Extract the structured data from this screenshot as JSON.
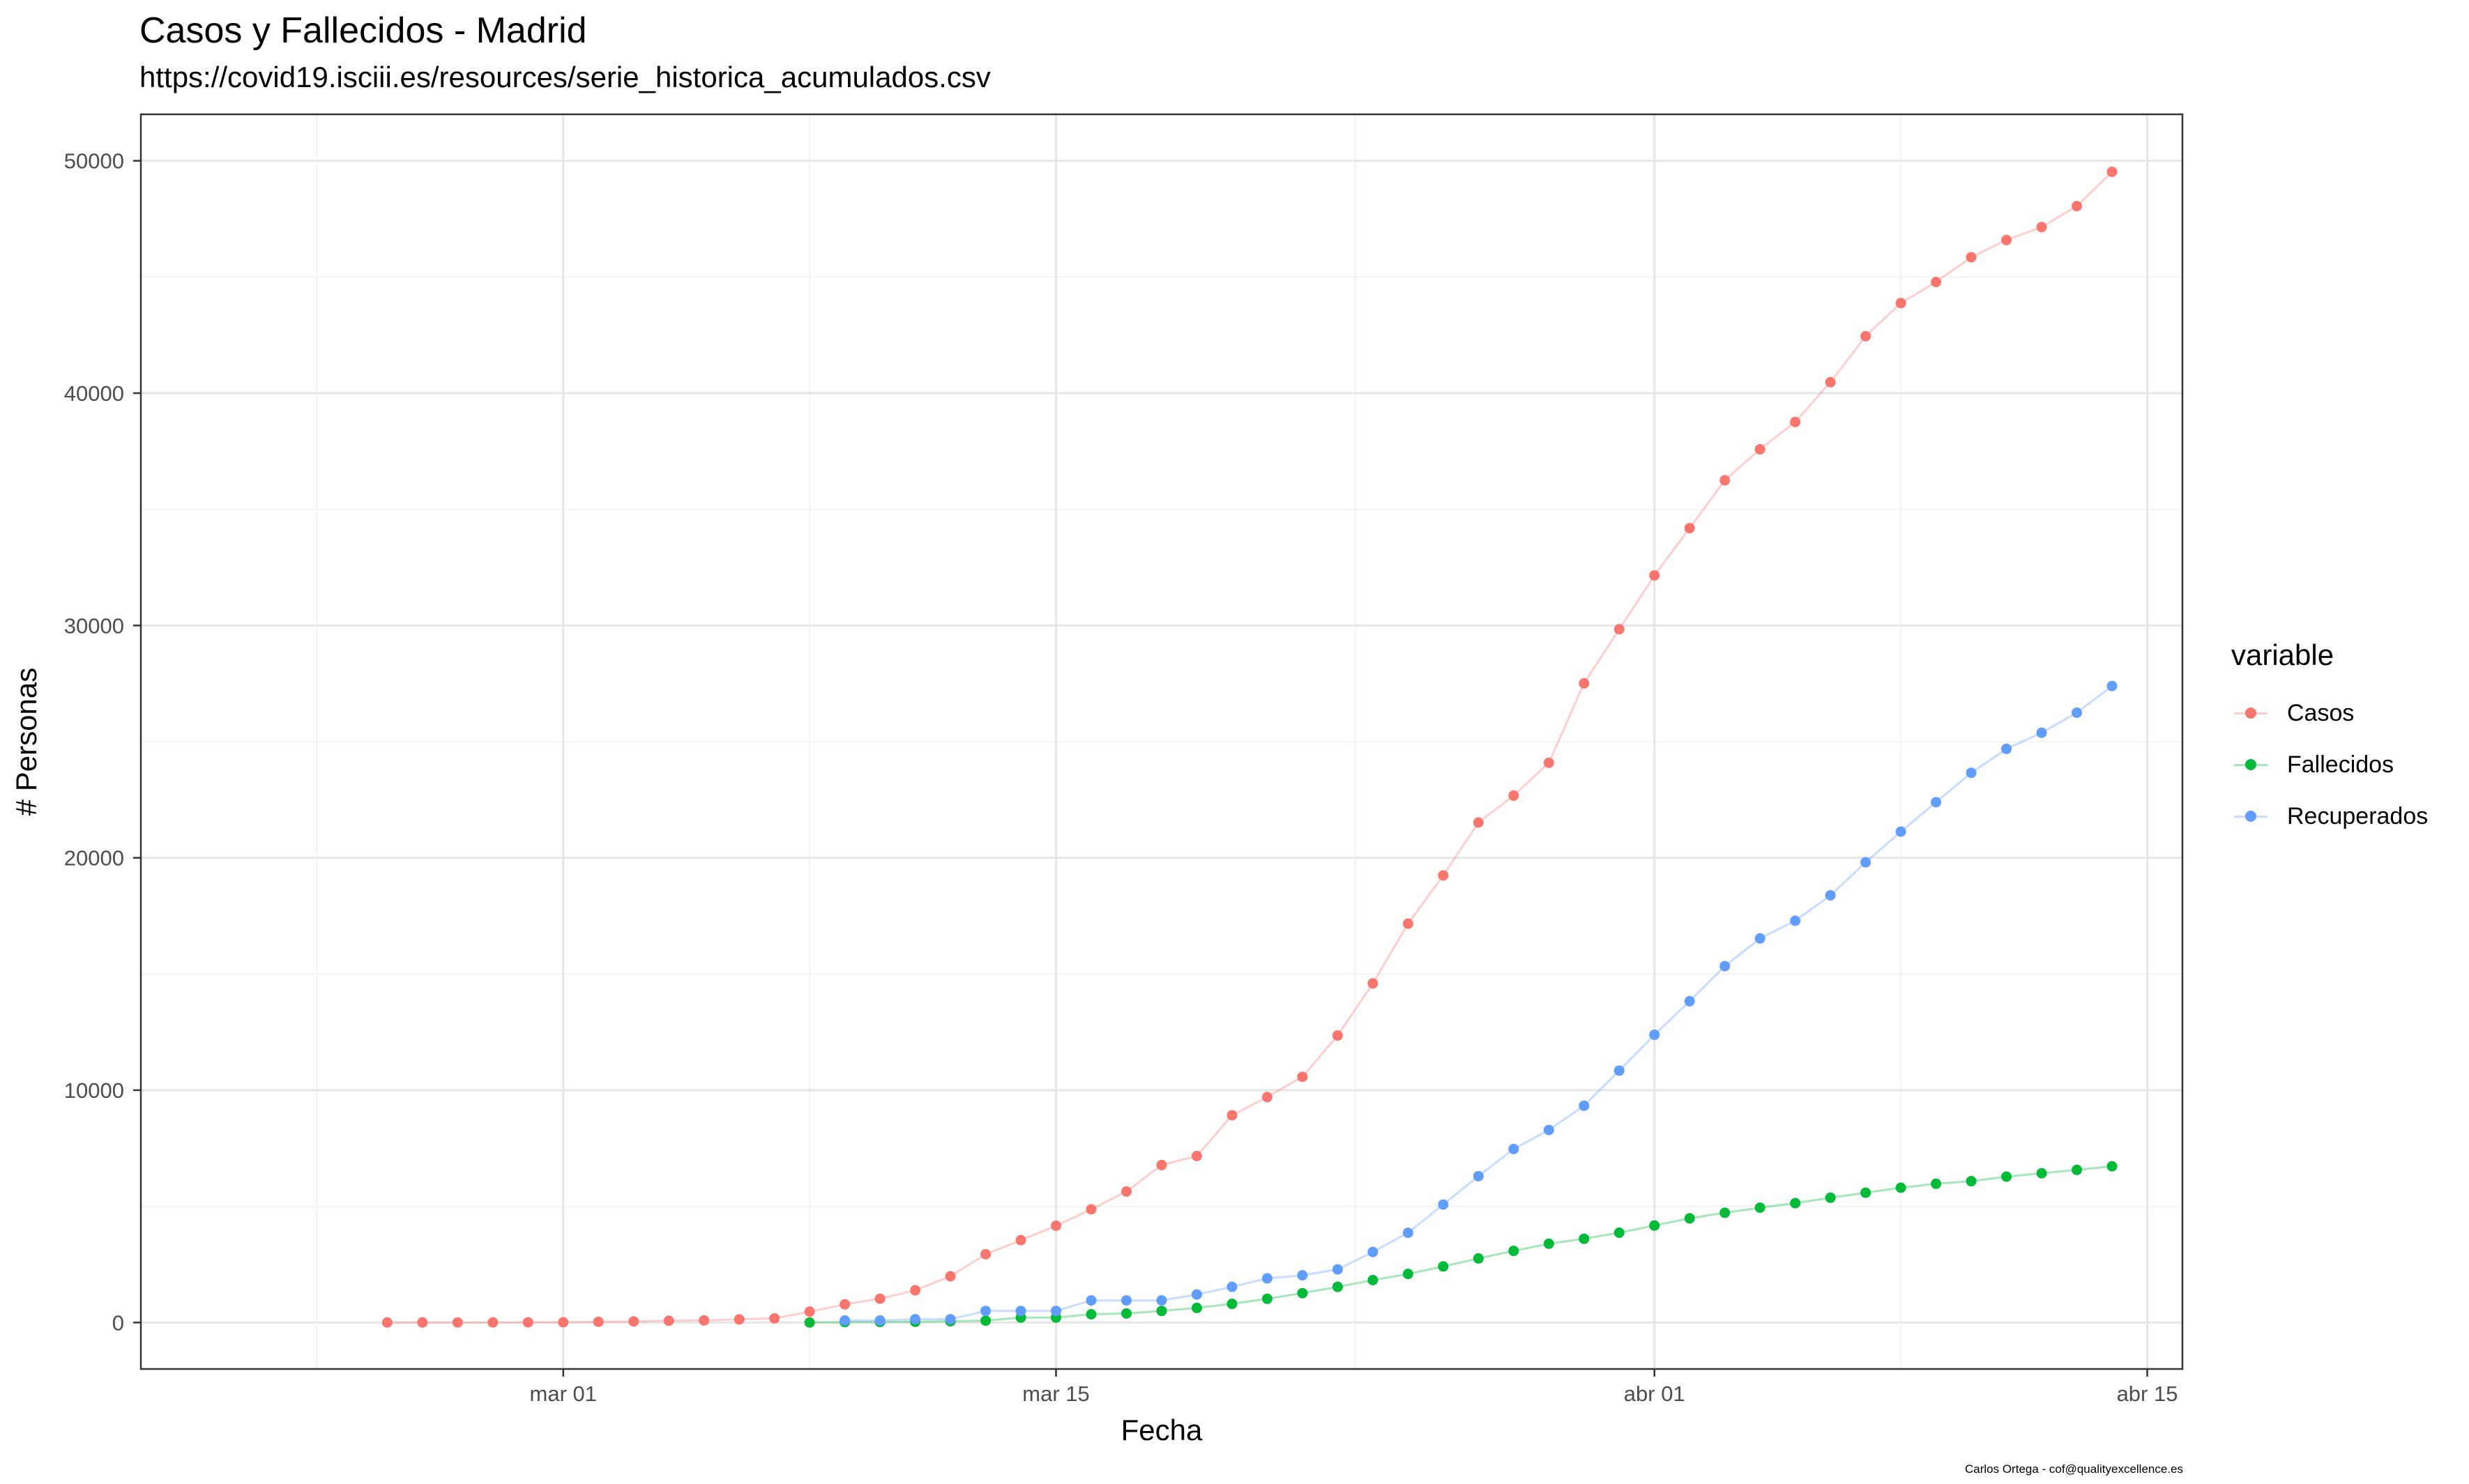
{
  "chart_data": {
    "type": "line",
    "title": "Casos y Fallecidos - Madrid",
    "subtitle": "https://covid19.isciii.es/resources/serie_historica_acumulados.csv",
    "xlabel": "Fecha",
    "ylabel": "# Personas",
    "caption": "Carlos Ortega - cof@qualityexcellence.es",
    "x_type": "date",
    "xlim": [
      "2020-02-18",
      "2020-04-16"
    ],
    "ylim": [
      -2000,
      52000
    ],
    "x_ticks": [
      {
        "date": "2020-03-01",
        "label": "mar 01"
      },
      {
        "date": "2020-03-15",
        "label": "mar 15"
      },
      {
        "date": "2020-04-01",
        "label": "abr 01"
      },
      {
        "date": "2020-04-15",
        "label": "abr 15"
      }
    ],
    "y_ticks": [
      0,
      10000,
      20000,
      30000,
      40000,
      50000
    ],
    "grid": true,
    "legend": {
      "title": "variable",
      "position": "right"
    },
    "series": [
      {
        "name": "Casos",
        "color": "#F8766D",
        "points": [
          [
            "2020-02-25",
            1
          ],
          [
            "2020-02-26",
            2
          ],
          [
            "2020-02-27",
            3
          ],
          [
            "2020-02-28",
            5
          ],
          [
            "2020-02-29",
            8
          ],
          [
            "2020-03-01",
            10
          ],
          [
            "2020-03-02",
            29
          ],
          [
            "2020-03-03",
            49
          ],
          [
            "2020-03-04",
            76
          ],
          [
            "2020-03-05",
            90
          ],
          [
            "2020-03-06",
            137
          ],
          [
            "2020-03-07",
            177
          ],
          [
            "2020-03-08",
            469
          ],
          [
            "2020-03-09",
            782
          ],
          [
            "2020-03-10",
            1024
          ],
          [
            "2020-03-11",
            1388
          ],
          [
            "2020-03-12",
            1990
          ],
          [
            "2020-03-13",
            2940
          ],
          [
            "2020-03-14",
            3544
          ],
          [
            "2020-03-15",
            4165
          ],
          [
            "2020-03-16",
            4871
          ],
          [
            "2020-03-17",
            5637
          ],
          [
            "2020-03-18",
            6777
          ],
          [
            "2020-03-19",
            7165
          ],
          [
            "2020-03-20",
            8921
          ],
          [
            "2020-03-21",
            9702
          ],
          [
            "2020-03-22",
            10575
          ],
          [
            "2020-03-23",
            12352
          ],
          [
            "2020-03-24",
            14597
          ],
          [
            "2020-03-25",
            17166
          ],
          [
            "2020-03-26",
            19243
          ],
          [
            "2020-03-27",
            21520
          ],
          [
            "2020-03-28",
            22677
          ],
          [
            "2020-03-29",
            24090
          ],
          [
            "2020-03-30",
            27509
          ],
          [
            "2020-03-31",
            29840
          ],
          [
            "2020-04-01",
            32155
          ],
          [
            "2020-04-02",
            34188
          ],
          [
            "2020-04-03",
            36249
          ],
          [
            "2020-04-04",
            37584
          ],
          [
            "2020-04-05",
            38758
          ],
          [
            "2020-04-06",
            40469
          ],
          [
            "2020-04-07",
            42450
          ],
          [
            "2020-04-08",
            43877
          ],
          [
            "2020-04-09",
            44783
          ],
          [
            "2020-04-10",
            45849
          ],
          [
            "2020-04-11",
            46587
          ],
          [
            "2020-04-12",
            47146
          ],
          [
            "2020-04-13",
            48048
          ],
          [
            "2020-04-14",
            49526
          ]
        ]
      },
      {
        "name": "Fallecidos",
        "color": "#00BA38",
        "points": [
          [
            "2020-03-08",
            0
          ],
          [
            "2020-03-09",
            16
          ],
          [
            "2020-03-10",
            21
          ],
          [
            "2020-03-11",
            31
          ],
          [
            "2020-03-12",
            56
          ],
          [
            "2020-03-13",
            81
          ],
          [
            "2020-03-14",
            213
          ],
          [
            "2020-03-15",
            213
          ],
          [
            "2020-03-16",
            355
          ],
          [
            "2020-03-17",
            390
          ],
          [
            "2020-03-18",
            498
          ],
          [
            "2020-03-19",
            628
          ],
          [
            "2020-03-20",
            804
          ],
          [
            "2020-03-21",
            1021
          ],
          [
            "2020-03-22",
            1263
          ],
          [
            "2020-03-23",
            1535
          ],
          [
            "2020-03-24",
            1825
          ],
          [
            "2020-03-25",
            2090
          ],
          [
            "2020-03-26",
            2412
          ],
          [
            "2020-03-27",
            2757
          ],
          [
            "2020-03-28",
            3082
          ],
          [
            "2020-03-29",
            3392
          ],
          [
            "2020-03-30",
            3603
          ],
          [
            "2020-03-31",
            3865
          ],
          [
            "2020-04-01",
            4175
          ],
          [
            "2020-04-02",
            4483
          ],
          [
            "2020-04-03",
            4723
          ],
          [
            "2020-04-04",
            4941
          ],
          [
            "2020-04-05",
            5136
          ],
          [
            "2020-04-06",
            5371
          ],
          [
            "2020-04-07",
            5586
          ],
          [
            "2020-04-08",
            5800
          ],
          [
            "2020-04-09",
            5972
          ],
          [
            "2020-04-10",
            6084
          ],
          [
            "2020-04-11",
            6278
          ],
          [
            "2020-04-12",
            6423
          ],
          [
            "2020-04-13",
            6568
          ],
          [
            "2020-04-14",
            6724
          ]
        ]
      },
      {
        "name": "Recuperados",
        "color": "#619CFF",
        "points": [
          [
            "2020-03-09",
            87
          ],
          [
            "2020-03-10",
            87
          ],
          [
            "2020-03-11",
            143
          ],
          [
            "2020-03-12",
            143
          ],
          [
            "2020-03-13",
            498
          ],
          [
            "2020-03-14",
            498
          ],
          [
            "2020-03-15",
            498
          ],
          [
            "2020-03-16",
            953
          ],
          [
            "2020-03-17",
            953
          ],
          [
            "2020-03-18",
            953
          ],
          [
            "2020-03-19",
            1207
          ],
          [
            "2020-03-20",
            1535
          ],
          [
            "2020-03-21",
            1899
          ],
          [
            "2020-03-22",
            2032
          ],
          [
            "2020-03-23",
            2288
          ],
          [
            "2020-03-24",
            3035
          ],
          [
            "2020-03-25",
            3862
          ],
          [
            "2020-03-26",
            5077
          ],
          [
            "2020-03-27",
            6300
          ],
          [
            "2020-03-28",
            7469
          ],
          [
            "2020-03-29",
            8286
          ],
          [
            "2020-03-30",
            9330
          ],
          [
            "2020-03-31",
            10841
          ],
          [
            "2020-04-01",
            12384
          ],
          [
            "2020-04-02",
            13827
          ],
          [
            "2020-04-03",
            15338
          ],
          [
            "2020-04-04",
            16531
          ],
          [
            "2020-04-05",
            17290
          ],
          [
            "2020-04-06",
            18386
          ],
          [
            "2020-04-07",
            19807
          ],
          [
            "2020-04-08",
            21126
          ],
          [
            "2020-04-09",
            22395
          ],
          [
            "2020-04-10",
            23658
          ],
          [
            "2020-04-11",
            24687
          ],
          [
            "2020-04-12",
            25384
          ],
          [
            "2020-04-13",
            26246
          ],
          [
            "2020-04-14",
            27393
          ]
        ]
      }
    ]
  }
}
